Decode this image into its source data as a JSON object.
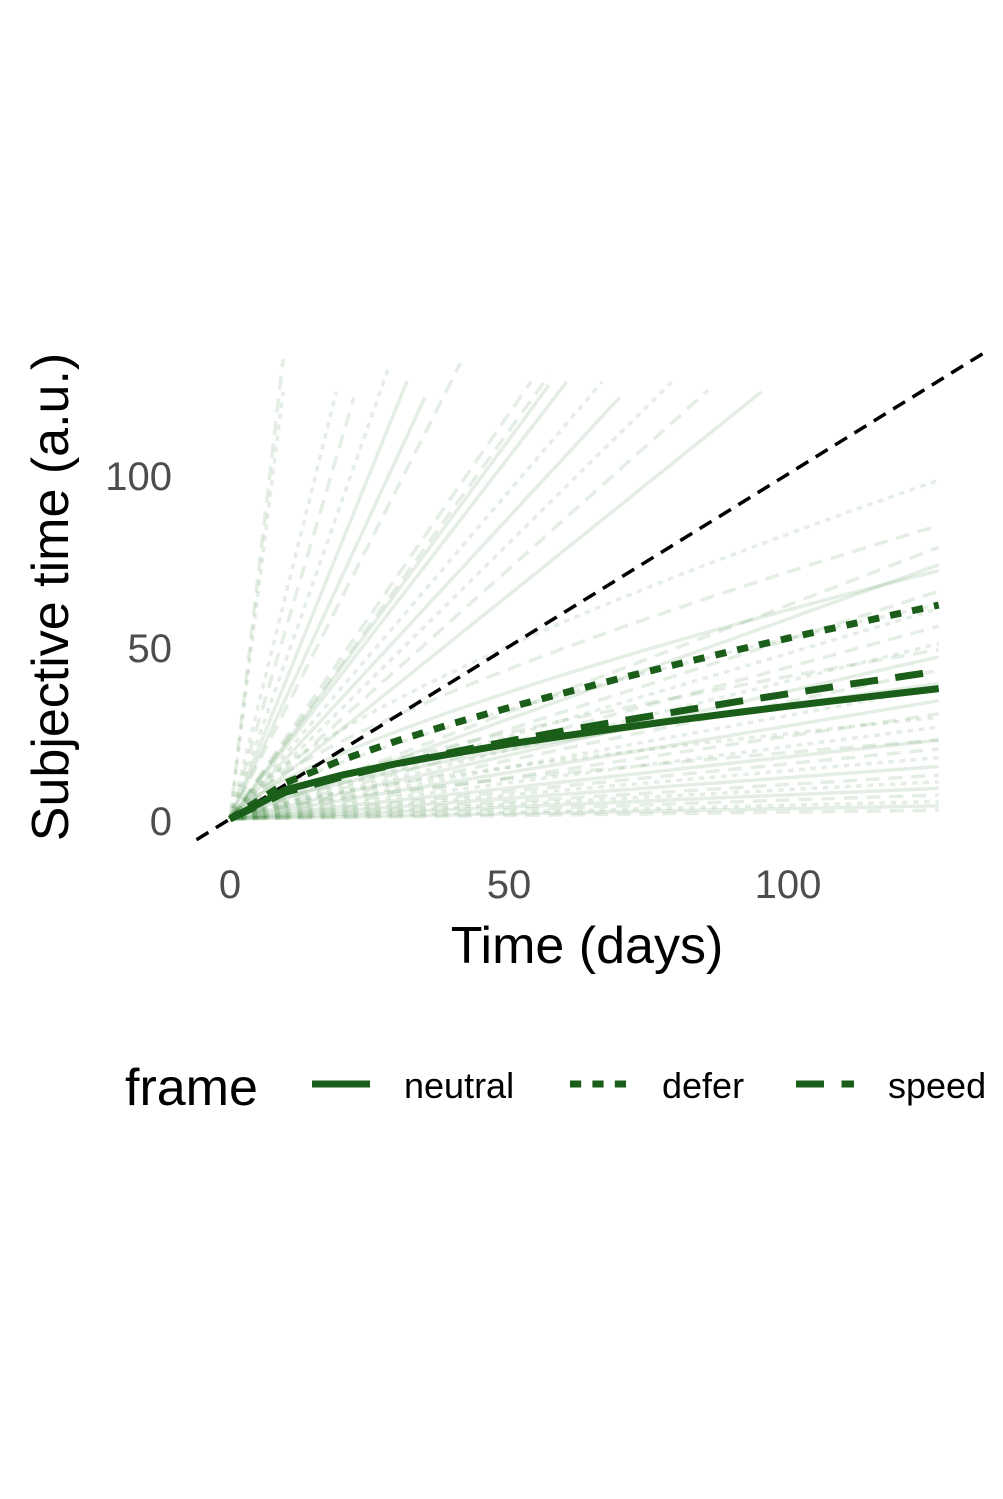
{
  "chart_data": {
    "type": "line",
    "title": "",
    "xlabel": "Time (days)",
    "ylabel": "Subjective time (a.u.)",
    "xlim": [
      -6,
      135
    ],
    "ylim": [
      -5,
      128
    ],
    "x_ticks": [
      "0",
      "50",
      "100"
    ],
    "y_ticks": [
      "0",
      "50",
      "100"
    ],
    "grid": false,
    "legend": {
      "title": "frame",
      "placement": "bottom",
      "entries": [
        "neutral",
        "defer",
        "speed"
      ]
    },
    "colors": {
      "mean": "#1a5e1a",
      "individual": "#2e7d32",
      "identity": "#000000"
    },
    "identity_line": {
      "x": [
        -6,
        135
      ],
      "y": [
        -6,
        135
      ],
      "style": "dashed"
    },
    "series": [
      {
        "name": "neutral",
        "style": "solid",
        "x": [
          0,
          10,
          20,
          30,
          40,
          50,
          60,
          70,
          80,
          90,
          100,
          110,
          120,
          127
        ],
        "y": [
          0,
          8.5,
          12.7,
          16.1,
          19.0,
          21.7,
          24.1,
          26.4,
          28.6,
          30.7,
          32.7,
          34.6,
          36.5,
          37.8
        ]
      },
      {
        "name": "defer",
        "style": "dotted",
        "x": [
          0,
          10,
          20,
          30,
          40,
          50,
          60,
          70,
          80,
          90,
          100,
          110,
          120,
          127
        ],
        "y": [
          0,
          10.5,
          17.1,
          22.7,
          27.7,
          32.3,
          36.6,
          40.8,
          44.8,
          48.7,
          52.4,
          56.0,
          59.6,
          62.0
        ]
      },
      {
        "name": "speed",
        "style": "dashed",
        "x": [
          0,
          10,
          20,
          30,
          40,
          50,
          60,
          70,
          80,
          90,
          100,
          110,
          120,
          127
        ],
        "y": [
          0,
          7.8,
          12.2,
          16.0,
          19.4,
          22.6,
          25.6,
          28.4,
          31.1,
          33.8,
          36.3,
          38.8,
          41.2,
          42.9
        ]
      }
    ],
    "individual_curves": [
      {
        "slope": 14,
        "exp": 1.0,
        "style": "dashed",
        "max_y": 122
      },
      {
        "slope": 13,
        "exp": 1.0,
        "style": "dotted",
        "max_y": 100
      },
      {
        "slope": 6.5,
        "exp": 1.0,
        "style": "dotted",
        "max_y": 122
      },
      {
        "slope": 5.5,
        "exp": 1.0,
        "style": "dashed",
        "max_y": 122
      },
      {
        "slope": 4.6,
        "exp": 1.0,
        "style": "dotted",
        "max_y": 122
      },
      {
        "slope": 4.0,
        "exp": 1.0,
        "style": "solid",
        "max_y": 122
      },
      {
        "slope": 3.5,
        "exp": 1.0,
        "style": "solid",
        "max_y": 122
      },
      {
        "slope": 3.2,
        "exp": 1.0,
        "style": "dashed",
        "max_y": 122
      },
      {
        "slope": 2.35,
        "exp": 1.0,
        "style": "dashed",
        "max_y": 122
      },
      {
        "slope": 2.25,
        "exp": 1.0,
        "style": "dashed",
        "max_y": 122
      },
      {
        "slope": 2.2,
        "exp": 1.0,
        "style": "solid",
        "max_y": 122
      },
      {
        "slope": 2.1,
        "exp": 1.0,
        "style": "solid",
        "max_y": 122
      },
      {
        "slope": 1.9,
        "exp": 1.0,
        "style": "dotted",
        "max_y": 122
      },
      {
        "slope": 1.75,
        "exp": 1.0,
        "style": "solid",
        "max_y": 122
      },
      {
        "slope": 1.6,
        "exp": 1.0,
        "style": "dotted",
        "max_y": 122
      },
      {
        "slope": 1.45,
        "exp": 1.0,
        "style": "dashed",
        "max_y": 122
      },
      {
        "slope": 1.3,
        "exp": 1.0,
        "style": "solid",
        "max_y": 122
      },
      {
        "slope": 0.62,
        "exp": 1.0,
        "style": "dashed",
        "max_y": 122
      },
      {
        "slope": 0.58,
        "exp": 1.0,
        "style": "solid",
        "max_y": 122
      },
      {
        "slope": 0.52,
        "exp": 1.0,
        "style": "dashed",
        "max_y": 122
      },
      {
        "slope": 0.48,
        "exp": 1.0,
        "style": "dotted",
        "max_y": 122
      },
      {
        "slope": 0.44,
        "exp": 1.0,
        "style": "dashed",
        "max_y": 122
      },
      {
        "slope": 0.4,
        "exp": 1.0,
        "style": "dotted",
        "max_y": 122
      },
      {
        "slope": 0.37,
        "exp": 1.0,
        "style": "solid",
        "max_y": 122
      },
      {
        "slope": 0.34,
        "exp": 1.0,
        "style": "dashed",
        "max_y": 122
      },
      {
        "slope": 0.3,
        "exp": 1.0,
        "style": "dotted",
        "max_y": 122
      },
      {
        "slope": 0.27,
        "exp": 1.0,
        "style": "solid",
        "max_y": 122
      },
      {
        "slope": 0.24,
        "exp": 1.0,
        "style": "dashed",
        "max_y": 122
      },
      {
        "slope": 0.21,
        "exp": 1.0,
        "style": "dotted",
        "max_y": 122
      },
      {
        "slope": 0.18,
        "exp": 1.0,
        "style": "solid",
        "max_y": 122
      },
      {
        "slope": 0.16,
        "exp": 1.0,
        "style": "dashed",
        "max_y": 122
      },
      {
        "slope": 0.14,
        "exp": 1.0,
        "style": "dotted",
        "max_y": 122
      },
      {
        "slope": 0.12,
        "exp": 1.0,
        "style": "solid",
        "max_y": 122
      },
      {
        "slope": 0.1,
        "exp": 1.0,
        "style": "dashed",
        "max_y": 122
      },
      {
        "slope": 0.085,
        "exp": 1.0,
        "style": "dotted",
        "max_y": 122
      },
      {
        "slope": 0.07,
        "exp": 1.0,
        "style": "solid",
        "max_y": 122
      },
      {
        "slope": 0.055,
        "exp": 1.0,
        "style": "dashed",
        "max_y": 122
      },
      {
        "slope": 0.04,
        "exp": 1.0,
        "style": "dotted",
        "max_y": 122
      },
      {
        "slope": 0.03,
        "exp": 1.0,
        "style": "solid",
        "max_y": 122
      },
      {
        "slope": 0.02,
        "exp": 1.0,
        "style": "dashed",
        "max_y": 122
      },
      {
        "slope": 3.0,
        "exp": 0.72,
        "style": "dotted",
        "max_y": 122
      },
      {
        "slope": 2.6,
        "exp": 0.72,
        "style": "dashed",
        "max_y": 122
      },
      {
        "slope": 2.2,
        "exp": 0.72,
        "style": "solid",
        "max_y": 122
      },
      {
        "slope": 1.9,
        "exp": 0.72,
        "style": "dotted",
        "max_y": 122
      },
      {
        "slope": 1.5,
        "exp": 0.72,
        "style": "dashed",
        "max_y": 122
      },
      {
        "slope": 1.2,
        "exp": 0.72,
        "style": "solid",
        "max_y": 122
      },
      {
        "slope": 0.9,
        "exp": 0.72,
        "style": "dotted",
        "max_y": 122
      },
      {
        "slope": 0.7,
        "exp": 0.72,
        "style": "dashed",
        "max_y": 122
      }
    ]
  }
}
